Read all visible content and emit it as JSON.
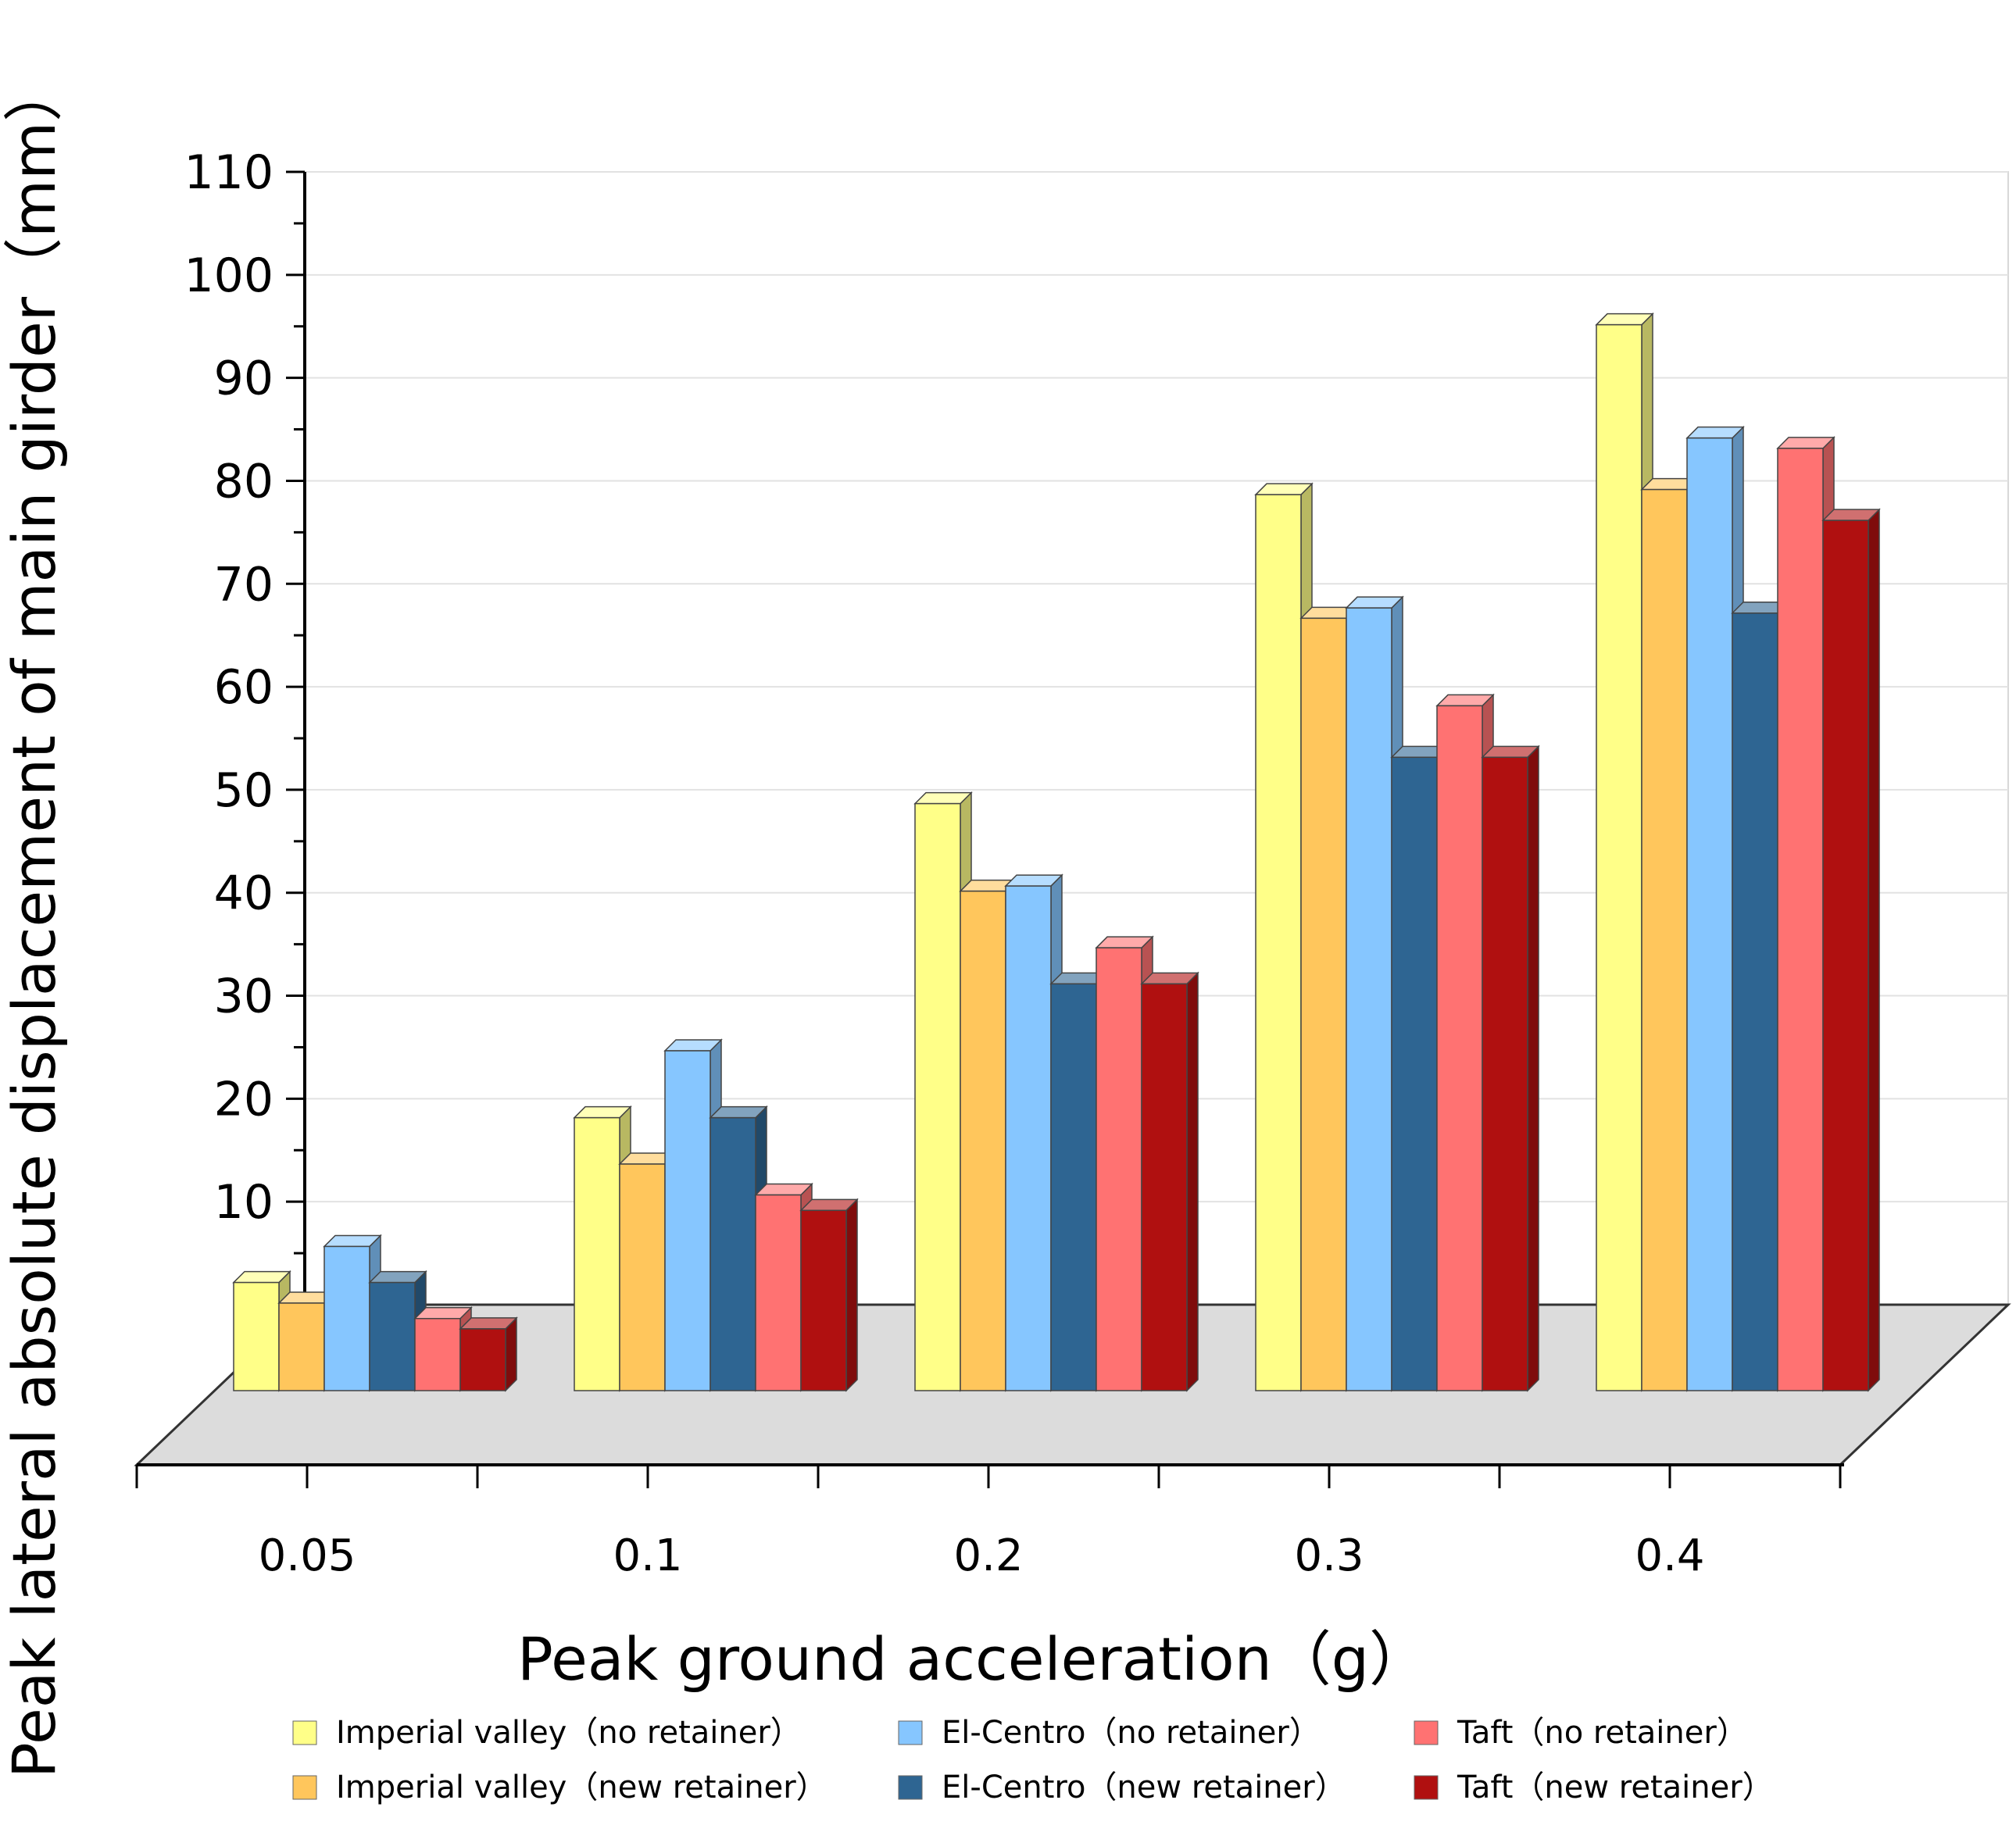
{
  "chart_data": {
    "type": "bar",
    "style": "3d-clustered-column",
    "xlabel": "Peak ground acceleration（g）",
    "ylabel": "Peak lateral absolute displacement of main girder（mm）",
    "ylim": [
      0,
      110
    ],
    "yticks": [
      "10",
      "20",
      "30",
      "40",
      "50",
      "60",
      "70",
      "80",
      "90",
      "100",
      "110"
    ],
    "grid": true,
    "legend_position": "bottom",
    "categories": [
      "0.05",
      "0.1",
      "0.2",
      "0.3",
      "0.4"
    ],
    "series": [
      {
        "name": "Imperial valley（no retainer）",
        "color": "#FFFF88",
        "values": [
          10.5,
          26.5,
          57,
          87,
          103.5
        ]
      },
      {
        "name": "Imperial valley（new retainer）",
        "color": "#FFC65C",
        "values": [
          8.5,
          22,
          48.5,
          75,
          87.5
        ]
      },
      {
        "name": "El-Centro（no retainer）",
        "color": "#86C6FF",
        "values": [
          14,
          33,
          49,
          76,
          92.5
        ]
      },
      {
        "name": "El-Centro（new retainer）",
        "color": "#2E6592",
        "values": [
          10.5,
          26.5,
          39.5,
          61.5,
          75.5
        ]
      },
      {
        "name": "Taft（no retainer）",
        "color": "#FF7272",
        "values": [
          7,
          19,
          43,
          66.5,
          91.5
        ]
      },
      {
        "name": "Taft（new retainer）",
        "color": "#B01010",
        "values": [
          6,
          17.5,
          39.5,
          61.5,
          84.5
        ]
      }
    ]
  }
}
